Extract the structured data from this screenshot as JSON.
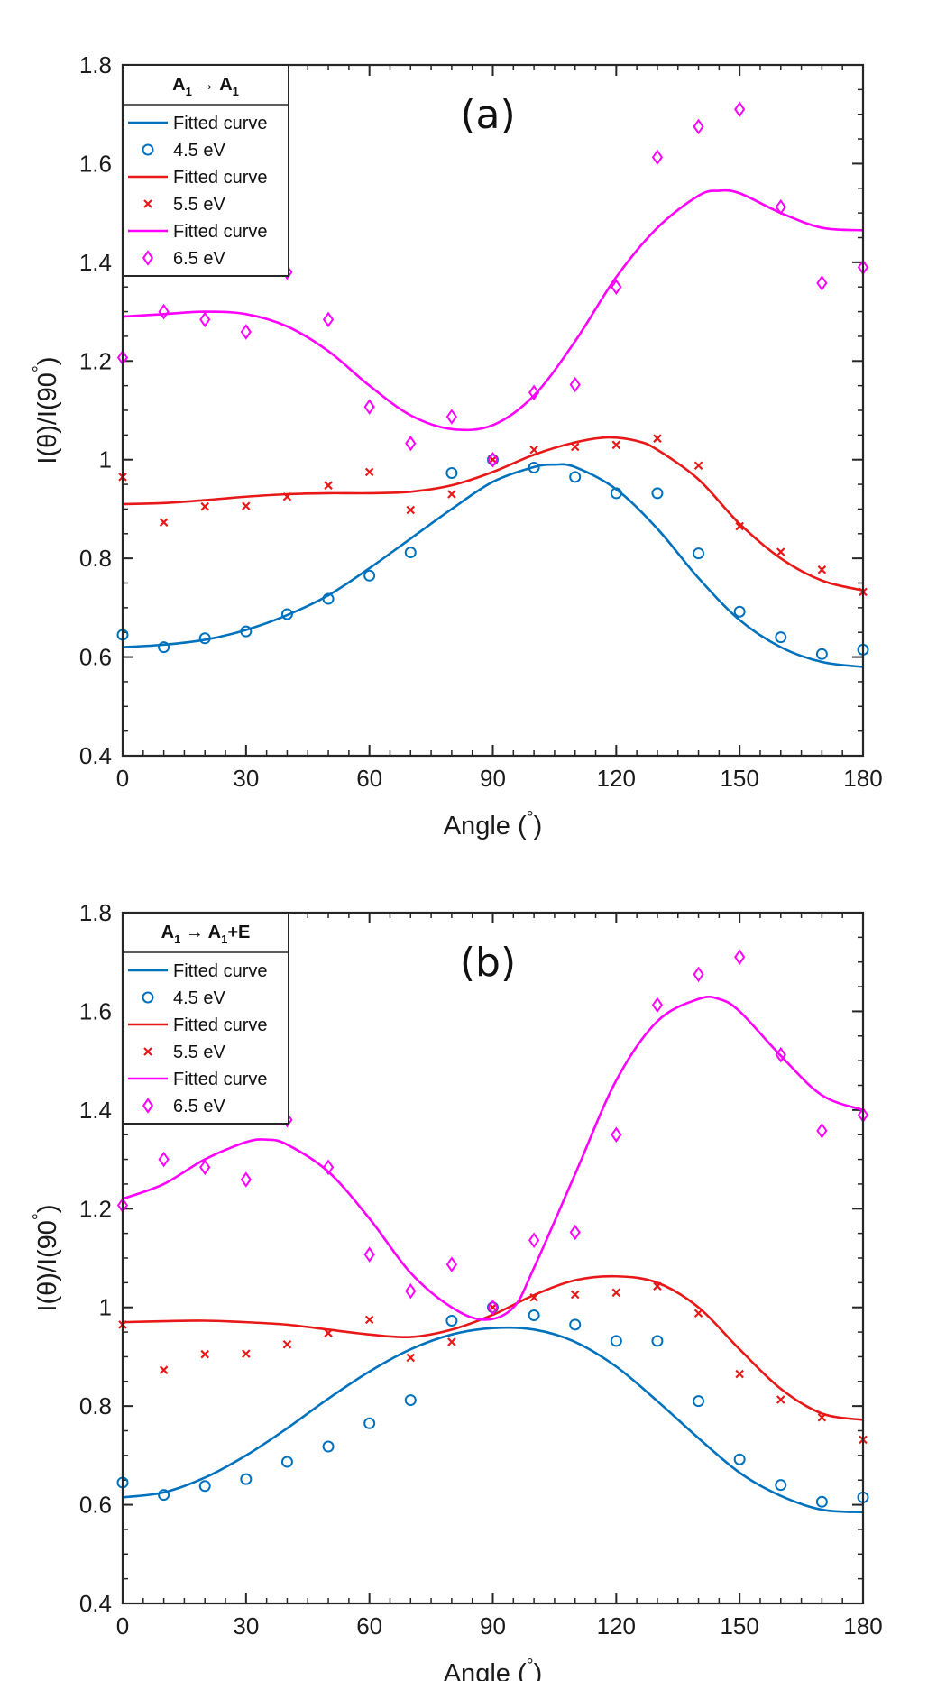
{
  "chart_data": [
    {
      "type": "line",
      "panel_label": "(a)",
      "legend_title": {
        "base1": "A",
        "sub1": "1",
        "arrow": " → ",
        "base2": "A",
        "sub2": "1",
        "suffix": ""
      },
      "xlabel": {
        "text": "Angle (",
        "degree": "°",
        "close": ")"
      },
      "ylabel": {
        "text": "I(θ)/I(90",
        "degree": "°",
        "close": ")"
      },
      "xlim": [
        0,
        180
      ],
      "ylim": [
        0.4,
        1.8
      ],
      "xticks": [
        0,
        30,
        60,
        90,
        120,
        150,
        180
      ],
      "xtick_labels": [
        "0",
        "30",
        "60",
        "90",
        "120",
        "150",
        "180"
      ],
      "yticks": [
        0.4,
        0.6,
        0.8,
        1.0,
        1.2,
        1.4,
        1.6,
        1.8
      ],
      "ytick_labels": [
        "0.4",
        "0.6",
        "0.8",
        "1",
        "1.2",
        "1.4",
        "1.6",
        "1.8"
      ],
      "legend_position": "top-left",
      "series": [
        {
          "name": "Fitted curve",
          "kind": "curve",
          "color": "#0072BD",
          "x": [
            0,
            10,
            20,
            30,
            40,
            50,
            60,
            70,
            80,
            90,
            100,
            105,
            110,
            120,
            130,
            140,
            150,
            160,
            170,
            180
          ],
          "y": [
            0.62,
            0.625,
            0.635,
            0.655,
            0.685,
            0.725,
            0.78,
            0.84,
            0.9,
            0.955,
            0.985,
            0.99,
            0.985,
            0.94,
            0.86,
            0.76,
            0.675,
            0.62,
            0.59,
            0.58
          ]
        },
        {
          "name": "4.5 eV",
          "kind": "points",
          "marker": "circle",
          "color": "#0072BD",
          "x": [
            0,
            10,
            20,
            30,
            40,
            50,
            60,
            70,
            80,
            90,
            100,
            110,
            120,
            130,
            140,
            150,
            160,
            170,
            180
          ],
          "y": [
            0.645,
            0.62,
            0.638,
            0.652,
            0.687,
            0.718,
            0.765,
            0.812,
            0.973,
            1.0,
            0.984,
            0.965,
            0.932,
            0.932,
            0.81,
            0.692,
            0.64,
            0.606,
            0.615
          ]
        },
        {
          "name": "Fitted curve",
          "kind": "curve",
          "color": "#E81818",
          "x": [
            0,
            10,
            20,
            30,
            40,
            50,
            60,
            70,
            80,
            90,
            100,
            110,
            118,
            125,
            130,
            140,
            150,
            160,
            170,
            180
          ],
          "y": [
            0.91,
            0.912,
            0.918,
            0.925,
            0.93,
            0.932,
            0.932,
            0.935,
            0.948,
            0.975,
            1.01,
            1.035,
            1.045,
            1.038,
            1.02,
            0.96,
            0.87,
            0.8,
            0.755,
            0.735
          ]
        },
        {
          "name": "5.5 eV",
          "kind": "points",
          "marker": "x",
          "color": "#E81818",
          "x": [
            0,
            10,
            20,
            30,
            40,
            50,
            60,
            70,
            80,
            90,
            100,
            110,
            120,
            130,
            140,
            150,
            160,
            170,
            180
          ],
          "y": [
            0.965,
            0.873,
            0.905,
            0.906,
            0.925,
            0.948,
            0.975,
            0.898,
            0.93,
            1.0,
            1.02,
            1.026,
            1.03,
            1.043,
            0.988,
            0.865,
            0.813,
            0.777,
            0.732
          ]
        },
        {
          "name": "Fitted curve",
          "kind": "curve",
          "color": "#FF00FF",
          "x": [
            0,
            10,
            20,
            30,
            40,
            50,
            60,
            70,
            80,
            90,
            100,
            110,
            120,
            130,
            140,
            145,
            150,
            160,
            170,
            180
          ],
          "y": [
            1.29,
            1.295,
            1.3,
            1.295,
            1.27,
            1.22,
            1.15,
            1.09,
            1.062,
            1.07,
            1.13,
            1.24,
            1.37,
            1.47,
            1.535,
            1.545,
            1.54,
            1.5,
            1.47,
            1.465
          ]
        },
        {
          "name": "6.5 eV",
          "kind": "points",
          "marker": "diamond",
          "color": "#FF00FF",
          "x": [
            0,
            10,
            20,
            30,
            40,
            50,
            60,
            70,
            80,
            90,
            100,
            110,
            120,
            130,
            140,
            150,
            160,
            170,
            180
          ],
          "y": [
            1.207,
            1.3,
            1.284,
            1.259,
            1.38,
            1.284,
            1.107,
            1.033,
            1.087,
            1.0,
            1.136,
            1.152,
            1.35,
            1.613,
            1.675,
            1.71,
            1.512,
            1.358,
            1.39
          ]
        }
      ]
    },
    {
      "type": "line",
      "panel_label": "(b)",
      "legend_title": {
        "base1": "A",
        "sub1": "1",
        "arrow": " → ",
        "base2": "A",
        "sub2": "1",
        "suffix": "+E"
      },
      "xlabel": {
        "text": "Angle (",
        "degree": "°",
        "close": ")"
      },
      "ylabel": {
        "text": "I(θ)/I(90",
        "degree": "°",
        "close": ")"
      },
      "xlim": [
        0,
        180
      ],
      "ylim": [
        0.4,
        1.8
      ],
      "xticks": [
        0,
        30,
        60,
        90,
        120,
        150,
        180
      ],
      "xtick_labels": [
        "0",
        "30",
        "60",
        "90",
        "120",
        "150",
        "180"
      ],
      "yticks": [
        0.4,
        0.6,
        0.8,
        1.0,
        1.2,
        1.4,
        1.6,
        1.8
      ],
      "ytick_labels": [
        "0.4",
        "0.6",
        "0.8",
        "1",
        "1.2",
        "1.4",
        "1.6",
        "1.8"
      ],
      "legend_position": "top-left",
      "series": [
        {
          "name": "Fitted curve",
          "kind": "curve",
          "color": "#0072BD",
          "x": [
            0,
            10,
            20,
            30,
            40,
            50,
            60,
            70,
            80,
            90,
            100,
            110,
            120,
            130,
            140,
            150,
            160,
            170,
            180
          ],
          "y": [
            0.615,
            0.625,
            0.655,
            0.7,
            0.755,
            0.815,
            0.87,
            0.915,
            0.945,
            0.958,
            0.955,
            0.93,
            0.88,
            0.81,
            0.735,
            0.665,
            0.618,
            0.59,
            0.585
          ]
        },
        {
          "name": "4.5 eV",
          "kind": "points",
          "marker": "circle",
          "color": "#0072BD",
          "x": [
            0,
            10,
            20,
            30,
            40,
            50,
            60,
            70,
            80,
            90,
            100,
            110,
            120,
            130,
            140,
            150,
            160,
            170,
            180
          ],
          "y": [
            0.645,
            0.62,
            0.638,
            0.652,
            0.687,
            0.718,
            0.765,
            0.812,
            0.973,
            1.0,
            0.984,
            0.965,
            0.932,
            0.932,
            0.81,
            0.692,
            0.64,
            0.606,
            0.615
          ]
        },
        {
          "name": "Fitted curve",
          "kind": "curve",
          "color": "#E81818",
          "x": [
            0,
            10,
            20,
            30,
            40,
            50,
            60,
            70,
            80,
            90,
            100,
            110,
            120,
            130,
            140,
            150,
            160,
            170,
            180
          ],
          "y": [
            0.97,
            0.972,
            0.973,
            0.97,
            0.965,
            0.955,
            0.945,
            0.94,
            0.955,
            0.985,
            1.025,
            1.055,
            1.063,
            1.05,
            1.0,
            0.915,
            0.835,
            0.785,
            0.772
          ]
        },
        {
          "name": "5.5 eV",
          "kind": "points",
          "marker": "x",
          "color": "#E81818",
          "x": [
            0,
            10,
            20,
            30,
            40,
            50,
            60,
            70,
            80,
            90,
            100,
            110,
            120,
            130,
            140,
            150,
            160,
            170,
            180
          ],
          "y": [
            0.965,
            0.873,
            0.905,
            0.906,
            0.925,
            0.948,
            0.975,
            0.898,
            0.93,
            1.0,
            1.02,
            1.026,
            1.03,
            1.043,
            0.988,
            0.865,
            0.813,
            0.777,
            0.732
          ]
        },
        {
          "name": "Fitted curve",
          "kind": "curve",
          "color": "#FF00FF",
          "x": [
            0,
            10,
            20,
            30,
            35,
            40,
            50,
            60,
            70,
            80,
            88,
            95,
            100,
            110,
            120,
            130,
            140,
            145,
            150,
            160,
            170,
            180
          ],
          "y": [
            1.22,
            1.25,
            1.3,
            1.335,
            1.34,
            1.33,
            1.275,
            1.18,
            1.07,
            1.0,
            0.975,
            1.0,
            1.08,
            1.27,
            1.46,
            1.58,
            1.625,
            1.625,
            1.6,
            1.51,
            1.43,
            1.4
          ]
        },
        {
          "name": "6.5 eV",
          "kind": "points",
          "marker": "diamond",
          "color": "#FF00FF",
          "x": [
            0,
            10,
            20,
            30,
            40,
            50,
            60,
            70,
            80,
            90,
            100,
            110,
            120,
            130,
            140,
            150,
            160,
            170,
            180
          ],
          "y": [
            1.207,
            1.3,
            1.284,
            1.259,
            1.38,
            1.284,
            1.107,
            1.033,
            1.087,
            1.0,
            1.136,
            1.152,
            1.35,
            1.613,
            1.675,
            1.71,
            1.512,
            1.358,
            1.39
          ]
        }
      ]
    }
  ]
}
